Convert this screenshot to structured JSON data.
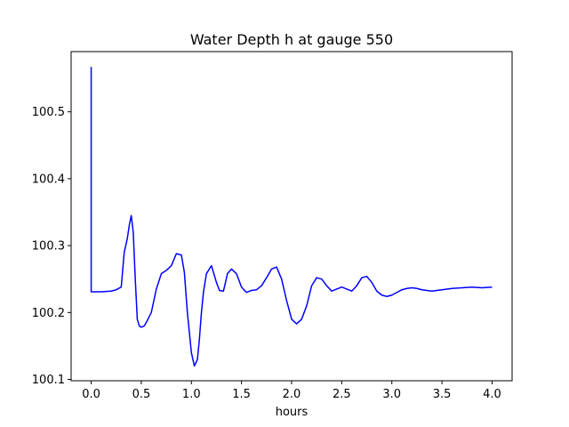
{
  "chart_data": {
    "type": "line",
    "title": "Water Depth h at gauge 550",
    "xlabel": "hours",
    "ylabel": "",
    "xlim": [
      -0.2,
      4.2
    ],
    "ylim": [
      100.098,
      100.59
    ],
    "grid": false,
    "legend": "none",
    "xticks": [
      0.0,
      0.5,
      1.0,
      1.5,
      2.0,
      2.5,
      3.0,
      3.5,
      4.0
    ],
    "xtick_labels": [
      "0.0",
      "0.5",
      "1.0",
      "1.5",
      "2.0",
      "2.5",
      "3.0",
      "3.5",
      "4.0"
    ],
    "yticks": [
      100.1,
      100.2,
      100.3,
      100.4,
      100.5
    ],
    "ytick_labels": [
      "100.1",
      "100.2",
      "100.3",
      "100.4",
      "100.5"
    ],
    "line_color": "#0000ff",
    "series": [
      {
        "x": [
          0.0,
          0.0,
          0.0,
          0.1,
          0.2,
          0.25,
          0.3,
          0.33,
          0.36,
          0.38,
          0.4,
          0.42,
          0.44,
          0.46,
          0.48,
          0.5,
          0.53,
          0.56,
          0.6,
          0.65,
          0.7,
          0.75,
          0.8,
          0.85,
          0.9,
          0.93,
          0.96,
          1.0,
          1.03,
          1.06,
          1.08,
          1.1,
          1.12,
          1.15,
          1.2,
          1.25,
          1.28,
          1.32,
          1.36,
          1.4,
          1.45,
          1.5,
          1.55,
          1.6,
          1.65,
          1.7,
          1.75,
          1.8,
          1.85,
          1.9,
          1.95,
          2.0,
          2.05,
          2.1,
          2.15,
          2.2,
          2.25,
          2.3,
          2.35,
          2.4,
          2.45,
          2.5,
          2.55,
          2.6,
          2.65,
          2.7,
          2.75,
          2.8,
          2.85,
          2.9,
          2.95,
          3.0,
          3.05,
          3.1,
          3.15,
          3.2,
          3.25,
          3.3,
          3.4,
          3.5,
          3.6,
          3.7,
          3.8,
          3.9,
          4.0
        ],
        "values": [
          100.567,
          100.231,
          100.231,
          100.231,
          100.232,
          100.234,
          100.238,
          100.29,
          100.31,
          100.33,
          100.345,
          100.32,
          100.25,
          100.19,
          100.18,
          100.178,
          100.18,
          100.188,
          100.2,
          100.235,
          100.258,
          100.263,
          100.27,
          100.288,
          100.286,
          100.26,
          100.2,
          100.14,
          100.12,
          100.13,
          100.16,
          100.2,
          100.23,
          100.258,
          100.27,
          100.245,
          100.233,
          100.232,
          100.258,
          100.265,
          100.258,
          100.238,
          100.23,
          100.233,
          100.234,
          100.24,
          100.252,
          100.265,
          100.268,
          100.25,
          100.218,
          100.19,
          100.183,
          100.19,
          100.21,
          100.24,
          100.252,
          100.25,
          100.24,
          100.232,
          100.235,
          100.238,
          100.235,
          100.232,
          100.24,
          100.252,
          100.254,
          100.245,
          100.232,
          100.226,
          100.224,
          100.226,
          100.23,
          100.234,
          100.236,
          100.237,
          100.236,
          100.234,
          100.232,
          100.234,
          100.236,
          100.237,
          100.238,
          100.237,
          100.238
        ]
      }
    ]
  }
}
